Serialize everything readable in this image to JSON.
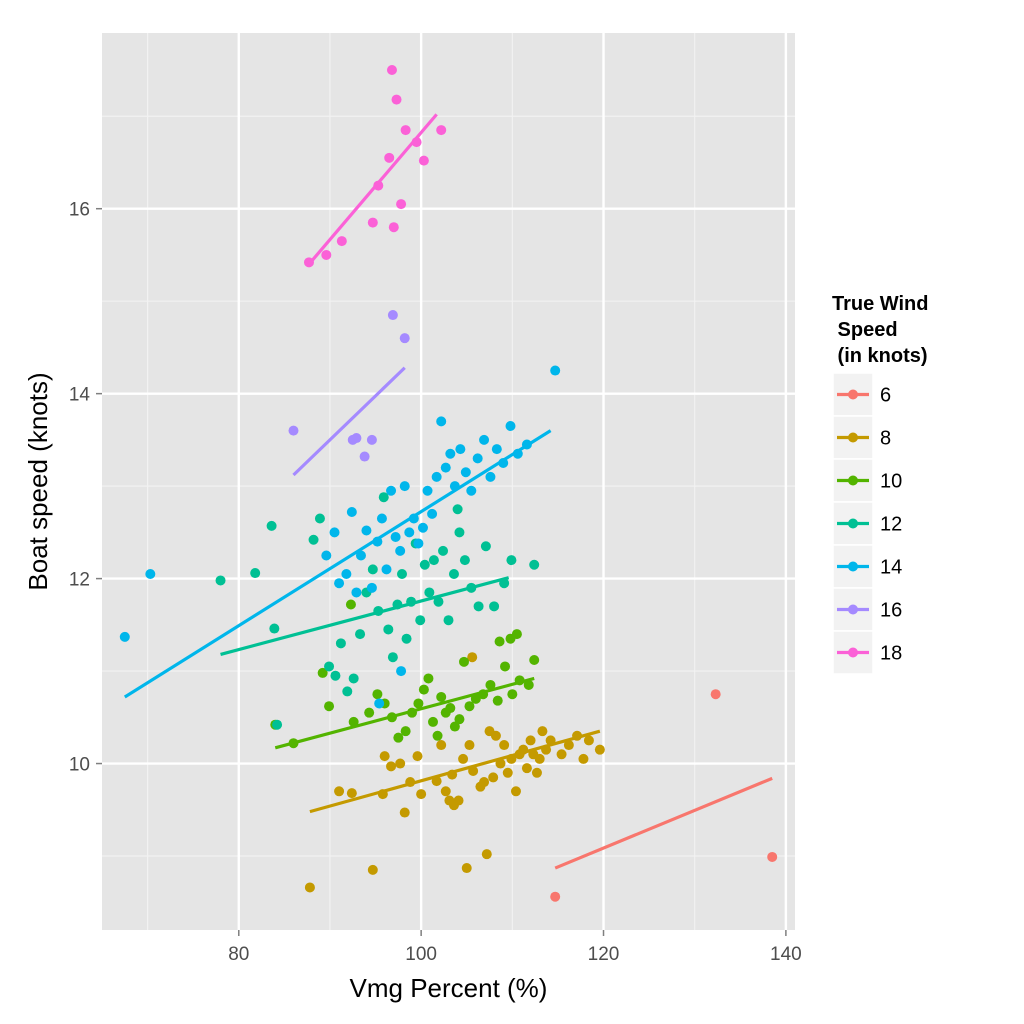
{
  "chart_data": {
    "type": "scatter",
    "xlabel": "Vmg Percent (%)",
    "ylabel": "Boat speed (knots)",
    "xlim": [
      65,
      141
    ],
    "ylim": [
      8.2,
      17.9
    ],
    "x_ticks": [
      80,
      100,
      120,
      140
    ],
    "x_tick_labels": [
      "80",
      "100",
      "120",
      "140"
    ],
    "y_ticks": [
      10,
      12,
      14,
      16
    ],
    "y_tick_labels": [
      "10",
      "12",
      "14",
      "16"
    ],
    "grid": true,
    "legend_position": "right",
    "legend_title_lines": [
      "True Wind",
      " Speed",
      " (in knots)"
    ],
    "series": [
      {
        "name": "6",
        "color": "#F8766D",
        "points": [
          [
            114.7,
            8.56
          ],
          [
            132.3,
            10.75
          ],
          [
            138.5,
            8.99
          ]
        ],
        "fit": [
          [
            114.7,
            8.87
          ],
          [
            138.5,
            9.84
          ]
        ]
      },
      {
        "name": "8",
        "color": "#C49A00",
        "points": [
          [
            87.8,
            8.66
          ],
          [
            91.0,
            9.7
          ],
          [
            92.4,
            9.68
          ],
          [
            94.7,
            8.85
          ],
          [
            95.8,
            9.67
          ],
          [
            96.0,
            10.08
          ],
          [
            96.7,
            9.97
          ],
          [
            97.7,
            10.0
          ],
          [
            98.2,
            9.47
          ],
          [
            98.8,
            9.8
          ],
          [
            99.6,
            10.08
          ],
          [
            100.0,
            9.67
          ],
          [
            101.7,
            9.81
          ],
          [
            102.2,
            10.2
          ],
          [
            102.7,
            9.7
          ],
          [
            103.1,
            9.6
          ],
          [
            103.4,
            9.88
          ],
          [
            103.6,
            9.55
          ],
          [
            104.1,
            9.6
          ],
          [
            104.6,
            10.05
          ],
          [
            105.0,
            8.87
          ],
          [
            105.3,
            10.2
          ],
          [
            105.7,
            9.92
          ],
          [
            106.5,
            9.75
          ],
          [
            106.9,
            9.8
          ],
          [
            107.2,
            9.02
          ],
          [
            107.5,
            10.35
          ],
          [
            107.9,
            9.85
          ],
          [
            108.2,
            10.3
          ],
          [
            108.7,
            10.0
          ],
          [
            109.1,
            10.2
          ],
          [
            109.5,
            9.9
          ],
          [
            109.9,
            10.05
          ],
          [
            110.4,
            9.7
          ],
          [
            110.8,
            10.1
          ],
          [
            111.2,
            10.15
          ],
          [
            111.6,
            9.95
          ],
          [
            112.0,
            10.25
          ],
          [
            112.3,
            10.1
          ],
          [
            112.7,
            9.9
          ],
          [
            113.0,
            10.05
          ],
          [
            113.3,
            10.35
          ],
          [
            113.7,
            10.15
          ],
          [
            114.2,
            10.25
          ],
          [
            115.4,
            10.1
          ],
          [
            116.2,
            10.2
          ],
          [
            117.1,
            10.3
          ],
          [
            117.8,
            10.05
          ],
          [
            118.4,
            10.25
          ],
          [
            119.6,
            10.15
          ],
          [
            105.6,
            11.15
          ]
        ],
        "fit": [
          [
            87.8,
            9.48
          ],
          [
            119.6,
            10.35
          ]
        ]
      },
      {
        "name": "10",
        "color": "#53B400",
        "points": [
          [
            84.0,
            10.42
          ],
          [
            86.0,
            10.22
          ],
          [
            89.9,
            10.62
          ],
          [
            92.6,
            10.45
          ],
          [
            94.3,
            10.55
          ],
          [
            95.2,
            10.75
          ],
          [
            96.0,
            10.65
          ],
          [
            96.8,
            10.5
          ],
          [
            97.5,
            10.28
          ],
          [
            98.3,
            10.35
          ],
          [
            99.0,
            10.55
          ],
          [
            99.7,
            10.65
          ],
          [
            100.3,
            10.8
          ],
          [
            100.8,
            10.92
          ],
          [
            101.3,
            10.45
          ],
          [
            101.8,
            10.3
          ],
          [
            102.2,
            10.72
          ],
          [
            102.7,
            10.55
          ],
          [
            103.2,
            10.6
          ],
          [
            103.7,
            10.4
          ],
          [
            104.2,
            10.48
          ],
          [
            104.7,
            11.1
          ],
          [
            105.3,
            10.62
          ],
          [
            106.0,
            10.7
          ],
          [
            106.8,
            10.75
          ],
          [
            107.6,
            10.85
          ],
          [
            108.4,
            10.68
          ],
          [
            109.2,
            11.05
          ],
          [
            110.0,
            10.75
          ],
          [
            110.8,
            10.9
          ],
          [
            109.8,
            11.35
          ],
          [
            110.5,
            11.4
          ],
          [
            111.8,
            10.85
          ],
          [
            112.4,
            11.12
          ],
          [
            108.6,
            11.32
          ],
          [
            92.3,
            11.72
          ],
          [
            89.2,
            10.98
          ]
        ],
        "fit": [
          [
            84.0,
            10.17
          ],
          [
            112.4,
            10.92
          ]
        ]
      },
      {
        "name": "12",
        "color": "#00C094",
        "points": [
          [
            78.0,
            11.98
          ],
          [
            81.8,
            12.06
          ],
          [
            83.6,
            12.57
          ],
          [
            83.9,
            11.46
          ],
          [
            84.2,
            10.42
          ],
          [
            88.2,
            12.42
          ],
          [
            88.9,
            12.65
          ],
          [
            89.9,
            11.05
          ],
          [
            90.6,
            10.95
          ],
          [
            91.2,
            11.3
          ],
          [
            91.9,
            10.78
          ],
          [
            92.6,
            10.92
          ],
          [
            93.3,
            11.4
          ],
          [
            94.0,
            11.85
          ],
          [
            94.7,
            12.1
          ],
          [
            95.3,
            11.65
          ],
          [
            95.9,
            12.88
          ],
          [
            96.4,
            11.45
          ],
          [
            96.9,
            11.15
          ],
          [
            97.4,
            11.72
          ],
          [
            97.9,
            12.05
          ],
          [
            98.4,
            11.35
          ],
          [
            98.9,
            11.75
          ],
          [
            99.4,
            12.38
          ],
          [
            99.9,
            11.55
          ],
          [
            100.4,
            12.15
          ],
          [
            100.9,
            11.85
          ],
          [
            101.4,
            12.2
          ],
          [
            101.9,
            11.75
          ],
          [
            102.4,
            12.3
          ],
          [
            103.0,
            11.55
          ],
          [
            103.6,
            12.05
          ],
          [
            104.2,
            12.5
          ],
          [
            104.8,
            12.2
          ],
          [
            105.5,
            11.9
          ],
          [
            106.3,
            11.7
          ],
          [
            107.1,
            12.35
          ],
          [
            108.0,
            11.7
          ],
          [
            109.1,
            11.95
          ],
          [
            109.9,
            12.2
          ],
          [
            112.4,
            12.15
          ],
          [
            104.0,
            12.75
          ]
        ],
        "fit": [
          [
            78.0,
            11.18
          ],
          [
            109.6,
            12.01
          ]
        ]
      },
      {
        "name": "14",
        "color": "#00B6EB",
        "points": [
          [
            67.5,
            11.37
          ],
          [
            70.3,
            12.05
          ],
          [
            89.6,
            12.25
          ],
          [
            90.5,
            12.5
          ],
          [
            91.0,
            11.95
          ],
          [
            91.8,
            12.05
          ],
          [
            92.4,
            12.72
          ],
          [
            92.9,
            11.85
          ],
          [
            93.4,
            12.25
          ],
          [
            94.0,
            12.52
          ],
          [
            94.6,
            11.9
          ],
          [
            95.2,
            12.4
          ],
          [
            95.7,
            12.65
          ],
          [
            96.2,
            12.1
          ],
          [
            96.7,
            12.95
          ],
          [
            97.2,
            12.45
          ],
          [
            97.7,
            12.3
          ],
          [
            98.2,
            13.0
          ],
          [
            98.7,
            12.5
          ],
          [
            99.2,
            12.65
          ],
          [
            99.7,
            12.38
          ],
          [
            100.2,
            12.55
          ],
          [
            100.7,
            12.95
          ],
          [
            101.2,
            12.7
          ],
          [
            101.7,
            13.1
          ],
          [
            102.2,
            13.7
          ],
          [
            102.7,
            13.2
          ],
          [
            103.2,
            13.35
          ],
          [
            103.7,
            13.0
          ],
          [
            104.3,
            13.4
          ],
          [
            104.9,
            13.15
          ],
          [
            105.5,
            12.95
          ],
          [
            106.2,
            13.3
          ],
          [
            106.9,
            13.5
          ],
          [
            107.6,
            13.1
          ],
          [
            108.3,
            13.4
          ],
          [
            109.0,
            13.25
          ],
          [
            109.8,
            13.65
          ],
          [
            110.6,
            13.35
          ],
          [
            111.6,
            13.45
          ],
          [
            114.7,
            14.25
          ],
          [
            95.4,
            10.65
          ],
          [
            97.8,
            11.0
          ]
        ],
        "fit": [
          [
            67.5,
            10.72
          ],
          [
            114.2,
            13.6
          ]
        ]
      },
      {
        "name": "16",
        "color": "#A58AFF",
        "points": [
          [
            86.0,
            13.6
          ],
          [
            92.5,
            13.5
          ],
          [
            92.9,
            13.52
          ],
          [
            93.8,
            13.32
          ],
          [
            94.6,
            13.5
          ],
          [
            96.9,
            14.85
          ],
          [
            98.2,
            14.6
          ]
        ],
        "fit": [
          [
            86.0,
            13.12
          ],
          [
            98.2,
            14.28
          ]
        ]
      },
      {
        "name": "18",
        "color": "#FB61D7",
        "points": [
          [
            87.7,
            15.42
          ],
          [
            89.6,
            15.5
          ],
          [
            91.3,
            15.65
          ],
          [
            94.7,
            15.85
          ],
          [
            95.3,
            16.25
          ],
          [
            96.5,
            16.55
          ],
          [
            96.8,
            17.5
          ],
          [
            97.3,
            17.18
          ],
          [
            97.0,
            15.8
          ],
          [
            97.8,
            16.05
          ],
          [
            98.3,
            16.85
          ],
          [
            99.5,
            16.72
          ],
          [
            100.3,
            16.52
          ],
          [
            102.2,
            16.85
          ]
        ],
        "fit": [
          [
            87.7,
            15.4
          ],
          [
            101.7,
            17.02
          ]
        ]
      }
    ]
  }
}
